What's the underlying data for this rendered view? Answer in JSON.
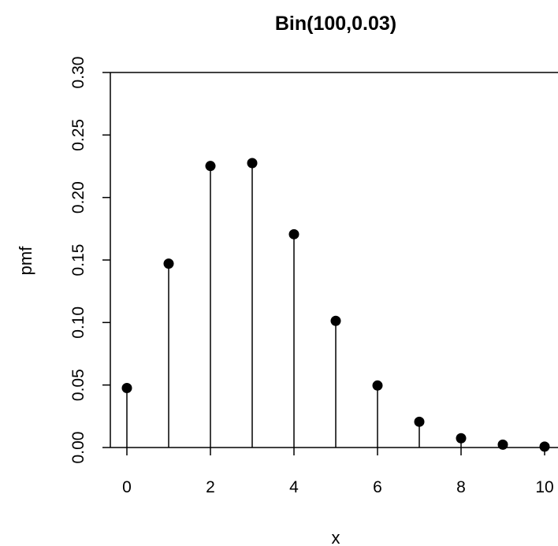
{
  "chart_data": {
    "type": "stem",
    "title": "Bin(100,0.03)",
    "xlabel": "x",
    "ylabel": "pmf",
    "x": [
      0,
      1,
      2,
      3,
      4,
      5,
      6,
      7,
      8,
      9,
      10
    ],
    "y": [
      0.0476,
      0.1471,
      0.2252,
      0.2275,
      0.1706,
      0.1013,
      0.0496,
      0.0206,
      0.0074,
      0.0023,
      0.0007
    ],
    "xlim": [
      0,
      10
    ],
    "ylim": [
      0,
      0.3
    ],
    "x_ticks": [
      "0",
      "2",
      "4",
      "6",
      "8",
      "10"
    ],
    "y_ticks": [
      "0.00",
      "0.05",
      "0.10",
      "0.15",
      "0.20",
      "0.25",
      "0.30"
    ],
    "grid": false,
    "legend": "none"
  }
}
